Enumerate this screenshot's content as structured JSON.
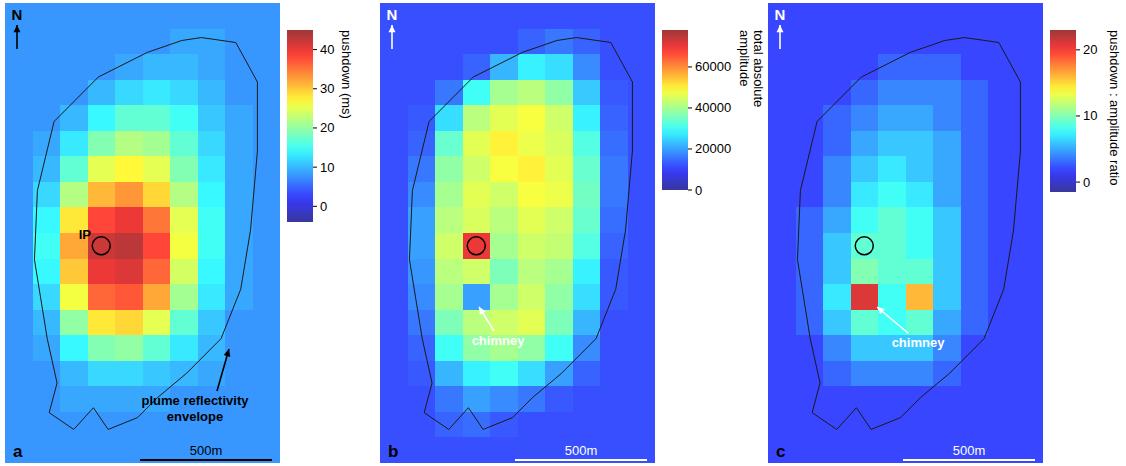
{
  "chart_data": [
    {
      "type": "heatmap",
      "panel_label": "a",
      "tick_labels": false,
      "north": "N",
      "scale_bar": "500m",
      "annotations": [
        "IP",
        "plume reflectivity envelope"
      ],
      "colorbar": {
        "range": [
          -4,
          45
        ],
        "ticks": [
          0,
          10,
          20,
          30,
          40
        ],
        "label": "pushdown (ms)"
      },
      "cells": [
        [
          8,
          8,
          8,
          8,
          8,
          8,
          8,
          8,
          8,
          8
        ],
        [
          8,
          8,
          8,
          8,
          8,
          8,
          9,
          9,
          8,
          8
        ],
        [
          8,
          8,
          8,
          8,
          9,
          10,
          10,
          9,
          8,
          8
        ],
        [
          8,
          8,
          8,
          10,
          12,
          13,
          12,
          10,
          8,
          8
        ],
        [
          8,
          8,
          10,
          14,
          17,
          17,
          15,
          11,
          9,
          8
        ],
        [
          8,
          9,
          13,
          19,
          22,
          21,
          17,
          12,
          9,
          8
        ],
        [
          8,
          10,
          17,
          25,
          27,
          25,
          19,
          13,
          9,
          8
        ],
        [
          8,
          12,
          22,
          31,
          33,
          29,
          22,
          14,
          9,
          8
        ],
        [
          8,
          14,
          28,
          38,
          40,
          35,
          25,
          15,
          9,
          8
        ],
        [
          8,
          15,
          32,
          42,
          43,
          38,
          26,
          15,
          9,
          8
        ],
        [
          8,
          14,
          30,
          40,
          41,
          36,
          24,
          14,
          9,
          8
        ],
        [
          8,
          12,
          26,
          36,
          37,
          32,
          21,
          13,
          9,
          8
        ],
        [
          8,
          10,
          20,
          28,
          29,
          25,
          17,
          11,
          8,
          8
        ],
        [
          8,
          9,
          14,
          19,
          20,
          17,
          13,
          10,
          8,
          8
        ],
        [
          8,
          8,
          10,
          12,
          12,
          11,
          10,
          9,
          8,
          8
        ],
        [
          8,
          8,
          9,
          9,
          9,
          9,
          8,
          8,
          8,
          8
        ],
        [
          8,
          8,
          8,
          8,
          8,
          8,
          8,
          8,
          8,
          8
        ],
        [
          8,
          8,
          8,
          8,
          8,
          8,
          8,
          8,
          8,
          8
        ]
      ]
    },
    {
      "type": "heatmap",
      "panel_label": "b",
      "tick_labels": false,
      "north": "N",
      "scale_bar": "500m",
      "annotations": [
        "chimney"
      ],
      "colorbar": {
        "range": [
          0,
          78000
        ],
        "ticks": [
          0,
          20000,
          40000,
          60000
        ],
        "label": "total absolute amplitude"
      },
      "cells": [
        [
          12000,
          12000,
          12000,
          12000,
          12000,
          12000,
          12000,
          12000,
          12000,
          12000
        ],
        [
          12000,
          12000,
          12000,
          12000,
          12000,
          14000,
          16000,
          14000,
          12000,
          12000
        ],
        [
          12000,
          12000,
          12000,
          14000,
          22000,
          28000,
          26000,
          18000,
          12000,
          12000
        ],
        [
          12000,
          12000,
          16000,
          30000,
          40000,
          42000,
          38000,
          24000,
          13000,
          12000
        ],
        [
          12000,
          13000,
          26000,
          42000,
          46000,
          48000,
          44000,
          28000,
          14000,
          12000
        ],
        [
          12000,
          14000,
          34000,
          46000,
          50000,
          47000,
          45000,
          32000,
          15000,
          12000
        ],
        [
          12000,
          16000,
          38000,
          44000,
          48000,
          50000,
          46000,
          34000,
          16000,
          12000
        ],
        [
          12000,
          18000,
          40000,
          46000,
          44000,
          48000,
          47000,
          35000,
          16000,
          12000
        ],
        [
          12000,
          20000,
          42000,
          45000,
          42000,
          46000,
          44000,
          34000,
          15000,
          12000
        ],
        [
          12000,
          20000,
          44000,
          70000,
          40000,
          44000,
          43000,
          32000,
          14000,
          12000
        ],
        [
          12000,
          19000,
          42000,
          44000,
          36000,
          42000,
          40000,
          28000,
          13000,
          12000
        ],
        [
          12000,
          18000,
          40000,
          20000,
          40000,
          44000,
          38000,
          26000,
          13000,
          12000
        ],
        [
          12000,
          16000,
          36000,
          42000,
          44000,
          46000,
          36000,
          22000,
          12000,
          12000
        ],
        [
          12000,
          14000,
          30000,
          38000,
          40000,
          38000,
          30000,
          18000,
          12000,
          12000
        ],
        [
          12000,
          13000,
          22000,
          28000,
          30000,
          26000,
          20000,
          14000,
          12000,
          12000
        ],
        [
          12000,
          12000,
          16000,
          20000,
          18000,
          16000,
          13000,
          12000,
          12000,
          12000
        ],
        [
          12000,
          12000,
          14000,
          15000,
          13000,
          12000,
          12000,
          12000,
          12000,
          12000
        ],
        [
          12000,
          12000,
          12000,
          12000,
          12000,
          12000,
          12000,
          12000,
          12000,
          12000
        ]
      ]
    },
    {
      "type": "heatmap",
      "panel_label": "c",
      "tick_labels": false,
      "north": "N",
      "scale_bar": "500m",
      "annotations": [
        "chimney"
      ],
      "colorbar": {
        "range": [
          -1.5,
          23
        ],
        "ticks": [
          0,
          10,
          20
        ],
        "label": "pushdown : amplitude ratio"
      },
      "cells": [
        [
          2,
          2,
          2,
          2,
          2,
          2,
          2,
          2,
          2,
          2
        ],
        [
          2,
          2,
          2,
          2,
          2,
          2,
          2,
          2,
          2,
          2
        ],
        [
          2,
          2,
          2,
          2,
          3,
          3,
          3,
          2,
          2,
          2
        ],
        [
          2,
          2,
          2,
          3,
          4,
          4,
          4,
          3,
          2,
          2
        ],
        [
          2,
          2,
          3,
          4,
          5,
          5,
          4,
          3,
          2,
          2
        ],
        [
          2,
          2,
          3,
          5,
          6,
          6,
          5,
          3,
          2,
          2
        ],
        [
          2,
          2,
          4,
          6,
          7,
          6,
          5,
          3,
          2,
          2
        ],
        [
          2,
          2,
          4,
          7,
          8,
          7,
          5,
          3,
          2,
          2
        ],
        [
          2,
          3,
          5,
          8,
          9,
          8,
          6,
          3,
          2,
          2
        ],
        [
          2,
          3,
          6,
          9,
          9,
          8,
          6,
          3,
          2,
          2
        ],
        [
          2,
          3,
          6,
          10,
          9,
          9,
          6,
          3,
          2,
          2
        ],
        [
          2,
          3,
          7,
          21,
          8,
          16,
          6,
          3,
          2,
          2
        ],
        [
          2,
          3,
          6,
          9,
          8,
          9,
          5,
          3,
          2,
          2
        ],
        [
          2,
          2,
          4,
          6,
          6,
          6,
          4,
          2,
          2,
          2
        ],
        [
          2,
          2,
          3,
          4,
          4,
          4,
          3,
          2,
          2,
          2
        ],
        [
          2,
          2,
          2,
          2,
          2,
          2,
          2,
          2,
          2,
          2
        ],
        [
          2,
          2,
          2,
          2,
          2,
          2,
          2,
          2,
          2,
          2
        ],
        [
          2,
          2,
          2,
          2,
          2,
          2,
          2,
          2,
          2,
          2
        ]
      ]
    }
  ]
}
